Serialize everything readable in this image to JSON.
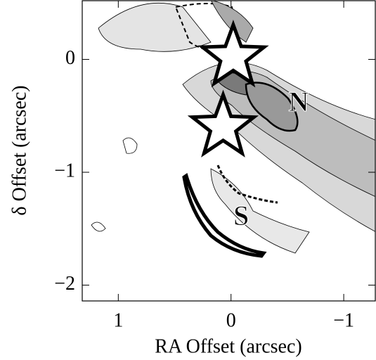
{
  "chart_data": {
    "type": "image",
    "xlabel": "RA Offset (arcsec)",
    "ylabel": "δ Offset (arcsec)",
    "xlim": [
      1.32,
      -1.28
    ],
    "ylim": [
      -2.14,
      0.52
    ],
    "xticks": [
      1,
      0,
      {
        "value": -1,
        "label": "−1"
      }
    ],
    "yticks": [
      0,
      {
        "value": -1,
        "label": "−1"
      },
      {
        "value": -2,
        "label": "−2"
      }
    ],
    "stars": [
      {
        "x": -0.02,
        "y": 0.02
      },
      {
        "x": 0.07,
        "y": -0.6
      }
    ],
    "annotations": [
      {
        "text": "N",
        "x": -0.6,
        "y": -0.4
      },
      {
        "text": "S",
        "x": -0.09,
        "y": -1.41
      }
    ]
  }
}
